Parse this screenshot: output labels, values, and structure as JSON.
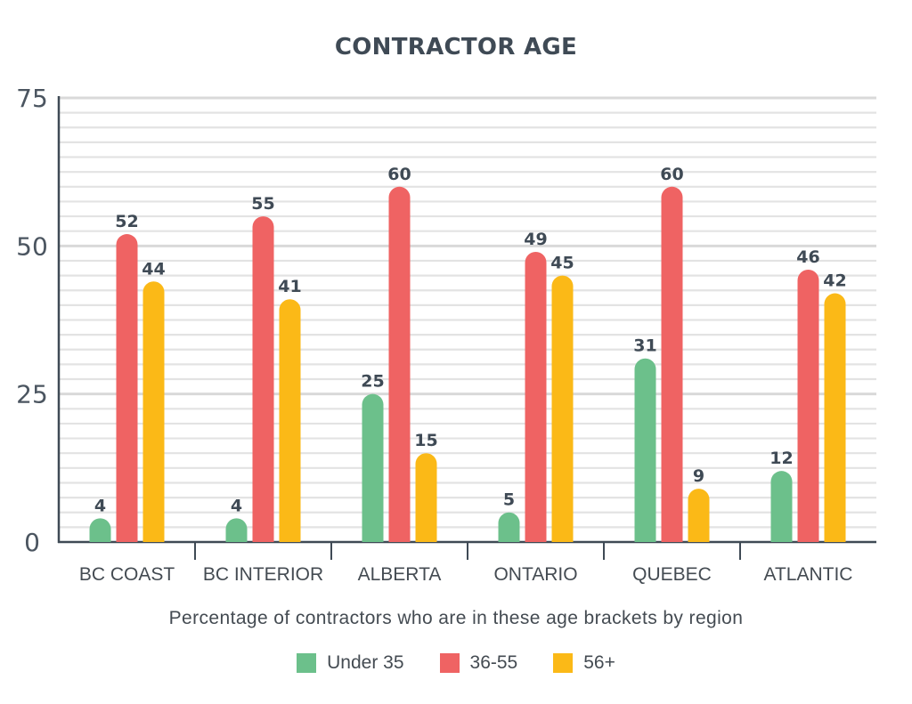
{
  "chart_data": {
    "type": "bar",
    "title": "CONTRACTOR AGE",
    "xlabel": "Percentage of contractors who are in these age brackets by region",
    "ylabel": "",
    "ylim": [
      0,
      75
    ],
    "yticks": [
      "0",
      "25",
      "50",
      "75"
    ],
    "grid": true,
    "legend_position": "bottom-center",
    "categories": [
      "BC COAST",
      "BC INTERIOR",
      "ALBERTA",
      "ONTARIO",
      "QUEBEC",
      "ATLANTIC"
    ],
    "series": [
      {
        "name": "Under 35",
        "color": "#6cc08b",
        "values": [
          4,
          4,
          25,
          5,
          31,
          12
        ]
      },
      {
        "name": "36-55",
        "color": "#ef6363",
        "values": [
          52,
          55,
          60,
          49,
          60,
          46
        ]
      },
      {
        "name": "56+",
        "color": "#fbb917",
        "values": [
          44,
          41,
          15,
          45,
          9,
          42
        ]
      }
    ]
  }
}
